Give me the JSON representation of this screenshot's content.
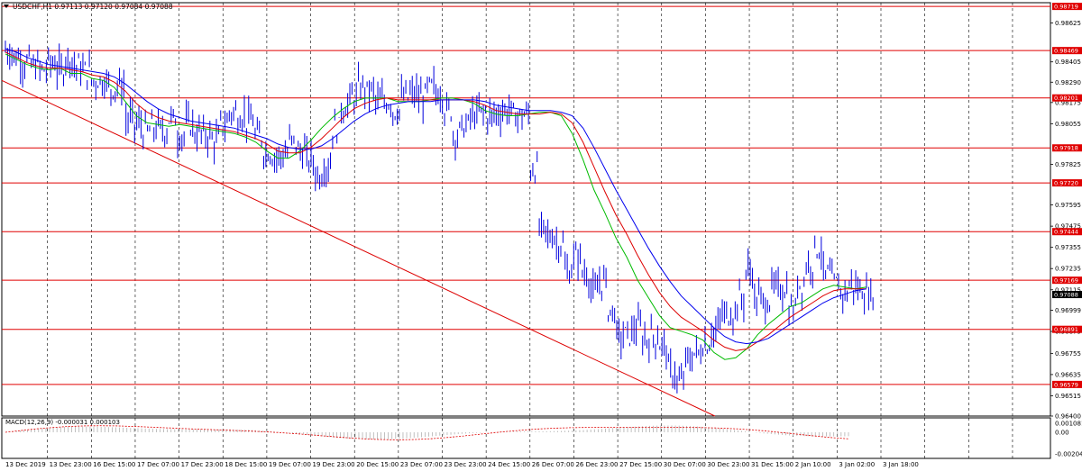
{
  "chart_data": {
    "type": "line",
    "header": "USDCHF,H1  0.97113 0.97120 0.97084 0.97088",
    "price_axis": [
      "0.98719",
      "0.98625",
      "0.98469",
      "0.98405",
      "0.98290",
      "0.98201",
      "0.98175",
      "0.98055",
      "0.97918",
      "0.97825",
      "0.97720",
      "0.97595",
      "0.97475",
      "0.97444",
      "0.97355",
      "0.97235",
      "0.97169",
      "0.97115",
      "0.97088",
      "0.96999",
      "0.96891",
      "0.96879",
      "0.96755",
      "0.96635",
      "0.96579",
      "0.96515",
      "0.96400"
    ],
    "hlines": [
      0.98719,
      0.98469,
      0.98201,
      0.97918,
      0.9772,
      0.97444,
      0.97169,
      0.96891,
      0.96579
    ],
    "current_price": 0.97088,
    "ylim": [
      0.964,
      0.9874
    ],
    "time_labels": [
      "13 Dec 2019",
      "13 Dec 23:00",
      "16 Dec 15:00",
      "17 Dec 07:00",
      "17 Dec 23:00",
      "18 Dec 15:00",
      "19 Dec 07:00",
      "19 Dec 23:00",
      "20 Dec 15:00",
      "23 Dec 07:00",
      "23 Dec 23:00",
      "24 Dec 15:00",
      "26 Dec 07:00",
      "26 Dec 23:00",
      "27 Dec 15:00",
      "30 Dec 07:00",
      "30 Dec 23:00",
      "31 Dec 15:00",
      "2 Jan 10:00",
      "3 Jan 02:00",
      "3 Jan 18:00"
    ],
    "series": [
      {
        "color": "#0000cc",
        "values": [
          0.9847,
          0.9843,
          0.984,
          0.9838,
          0.9836,
          0.984,
          0.9836,
          0.9843,
          0.9838,
          0.9835,
          0.983,
          0.983,
          0.9826,
          0.9827,
          0.9808,
          0.9805,
          0.9801,
          0.9803,
          0.9802,
          0.9808,
          0.9799,
          0.9805,
          0.98,
          0.9799,
          0.9796,
          0.9805,
          0.9812,
          0.981,
          0.9807,
          0.9798,
          0.979,
          0.9787,
          0.9788,
          0.9795,
          0.979,
          0.9785,
          0.9777,
          0.9782,
          0.9803,
          0.9815,
          0.982,
          0.9826,
          0.9824,
          0.9818,
          0.9818,
          0.9813,
          0.982,
          0.9822,
          0.982,
          0.9826,
          0.9823,
          0.9813,
          0.98,
          0.9804,
          0.981,
          0.9812,
          0.981,
          0.9812,
          0.9813,
          0.981,
          0.981,
          0.978,
          0.9745,
          0.9742,
          0.9738,
          0.9722,
          0.973,
          0.9721,
          0.971,
          0.9716,
          0.97,
          0.9685,
          0.9686,
          0.969,
          0.9684,
          0.9685,
          0.968,
          0.9665,
          0.9659,
          0.9672,
          0.9676,
          0.9681,
          0.9688,
          0.9697,
          0.9698,
          0.9706,
          0.9722,
          0.9706,
          0.9705,
          0.9712,
          0.9712,
          0.97,
          0.9715,
          0.9726,
          0.9735,
          0.972,
          0.9715,
          0.971,
          0.9714,
          0.9711,
          0.9709
        ],
        "kind": "bars"
      },
      {
        "name": "",
        "color": "#00bb00",
        "values": [
          0.9845,
          0.9842,
          0.9839,
          0.9837,
          0.9836,
          0.9837,
          0.9834,
          0.9834,
          0.9831,
          0.983,
          0.9826,
          0.9818,
          0.981,
          0.9806,
          0.9805,
          0.9804,
          0.9805,
          0.9804,
          0.9803,
          0.9802,
          0.9801,
          0.98,
          0.9798,
          0.9795,
          0.979,
          0.9786,
          0.9786,
          0.979,
          0.9796,
          0.9803,
          0.9809,
          0.9814,
          0.9818,
          0.982,
          0.982,
          0.982,
          0.9818,
          0.9818,
          0.9818,
          0.9819,
          0.982,
          0.982,
          0.9819,
          0.9817,
          0.9813,
          0.9811,
          0.981,
          0.981,
          0.9811,
          0.9812,
          0.9812,
          0.981,
          0.98,
          0.9785,
          0.9768,
          0.9755,
          0.9741,
          0.973,
          0.9717,
          0.9707,
          0.9697,
          0.969,
          0.9688,
          0.9686,
          0.9683,
          0.9676,
          0.9672,
          0.9673,
          0.9678,
          0.9686,
          0.9692,
          0.9697,
          0.9702,
          0.9704,
          0.9708,
          0.9712,
          0.9714,
          0.9713,
          0.9712,
          0.9713
        ]
      },
      {
        "name": "",
        "color": "#dd0000",
        "values": [
          0.9846,
          0.9843,
          0.984,
          0.9838,
          0.9837,
          0.9837,
          0.9836,
          0.9835,
          0.9833,
          0.9832,
          0.9829,
          0.9824,
          0.9817,
          0.9812,
          0.9809,
          0.9807,
          0.9806,
          0.9805,
          0.9804,
          0.9803,
          0.9802,
          0.9801,
          0.9799,
          0.9797,
          0.9794,
          0.979,
          0.9789,
          0.9789,
          0.9792,
          0.9797,
          0.9803,
          0.9809,
          0.9814,
          0.9817,
          0.9819,
          0.982,
          0.9819,
          0.9819,
          0.9819,
          0.9819,
          0.9819,
          0.9819,
          0.9819,
          0.9818,
          0.9816,
          0.9813,
          0.9812,
          0.9811,
          0.9811,
          0.9811,
          0.9812,
          0.9811,
          0.9806,
          0.9795,
          0.9781,
          0.9767,
          0.9754,
          0.9743,
          0.9731,
          0.972,
          0.971,
          0.9702,
          0.9696,
          0.9692,
          0.9688,
          0.9683,
          0.9679,
          0.9677,
          0.9678,
          0.9682,
          0.9686,
          0.9691,
          0.9696,
          0.97,
          0.9704,
          0.9708,
          0.9711,
          0.9712,
          0.9712,
          0.9712
        ]
      },
      {
        "name": "",
        "color": "#0000ee",
        "values": [
          0.9848,
          0.9846,
          0.9843,
          0.9841,
          0.9839,
          0.9838,
          0.9837,
          0.9836,
          0.9835,
          0.9834,
          0.9832,
          0.9828,
          0.9823,
          0.9818,
          0.9814,
          0.9811,
          0.9809,
          0.9807,
          0.9806,
          0.9805,
          0.9804,
          0.9803,
          0.9801,
          0.9799,
          0.9797,
          0.9794,
          0.9792,
          0.9791,
          0.9791,
          0.9793,
          0.9797,
          0.9802,
          0.9807,
          0.9811,
          0.9814,
          0.9816,
          0.9817,
          0.9818,
          0.9818,
          0.9818,
          0.9819,
          0.9819,
          0.9819,
          0.9819,
          0.9818,
          0.9816,
          0.9815,
          0.9814,
          0.9813,
          0.9813,
          0.9813,
          0.9812,
          0.981,
          0.9803,
          0.9792,
          0.978,
          0.9768,
          0.9757,
          0.9746,
          0.9735,
          0.9725,
          0.9716,
          0.9708,
          0.9702,
          0.9696,
          0.969,
          0.9685,
          0.9682,
          0.9681,
          0.9682,
          0.9684,
          0.9688,
          0.9692,
          0.9696,
          0.97,
          0.9704,
          0.9707,
          0.9709,
          0.9711,
          0.9712
        ]
      }
    ],
    "trendline": {
      "from": [
        0,
        0.983
      ],
      "to": [
        0.68,
        0.964
      ],
      "color": "#dd0000"
    },
    "macd": {
      "label": "MACD(12,26,9) -0.000031 0.000103",
      "axis": [
        "0.001081",
        "0.00",
        "-0.002043"
      ]
    }
  }
}
